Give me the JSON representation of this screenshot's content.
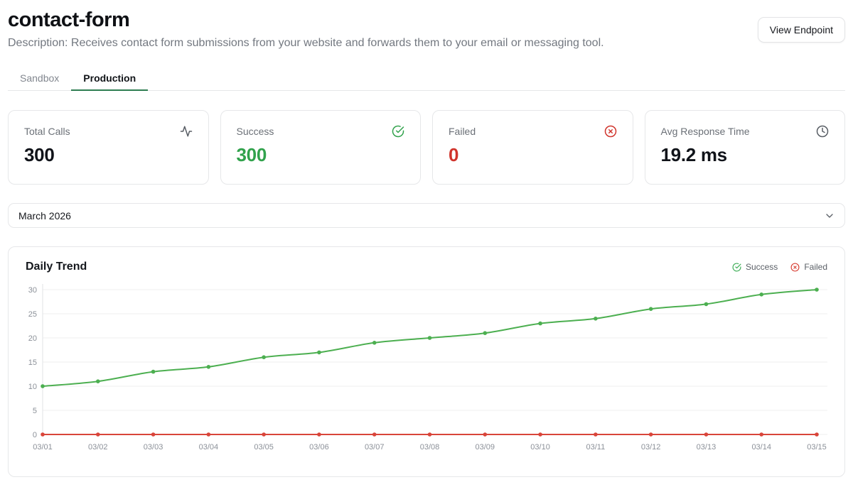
{
  "header": {
    "title": "contact-form",
    "description": "Description: Receives contact form submissions from your website and forwards them to your email or messaging tool.",
    "view_endpoint_label": "View Endpoint"
  },
  "tabs": [
    {
      "label": "Sandbox",
      "active": false
    },
    {
      "label": "Production",
      "active": true
    }
  ],
  "stats": [
    {
      "label": "Total Calls",
      "value": "300",
      "icon": "activity-icon",
      "value_color": "#101319"
    },
    {
      "label": "Success",
      "value": "300",
      "icon": "check-circle-icon",
      "value_color": "#31a24c"
    },
    {
      "label": "Failed",
      "value": "0",
      "icon": "x-circle-icon",
      "value_color": "#d0342c"
    },
    {
      "label": "Avg Response Time",
      "value": "19.2 ms",
      "icon": "clock-icon",
      "value_color": "#101319"
    }
  ],
  "month_select": {
    "value": "March 2026",
    "icon": "chevron-down-icon"
  },
  "chart_card": {
    "title": "Daily Trend",
    "legend": [
      {
        "label": "Success",
        "color": "#3fae58",
        "icon": "check-circle-icon"
      },
      {
        "label": "Failed",
        "color": "#d9453a",
        "icon": "x-circle-icon"
      }
    ]
  },
  "chart_data": {
    "type": "line",
    "title": "Daily Trend",
    "categories": [
      "03/01",
      "03/02",
      "03/03",
      "03/04",
      "03/05",
      "03/06",
      "03/07",
      "03/08",
      "03/09",
      "03/10",
      "03/11",
      "03/12",
      "03/13",
      "03/14",
      "03/15"
    ],
    "series": [
      {
        "name": "Success",
        "color": "#4caf50",
        "values": [
          10,
          11,
          13,
          14,
          16,
          17,
          19,
          20,
          21,
          23,
          24,
          26,
          27,
          29,
          30
        ]
      },
      {
        "name": "Failed",
        "color": "#d9453a",
        "values": [
          0,
          0,
          0,
          0,
          0,
          0,
          0,
          0,
          0,
          0,
          0,
          0,
          0,
          0,
          0
        ]
      }
    ],
    "xlabel": "",
    "ylabel": "",
    "ylim": [
      0,
      30
    ],
    "yticks": [
      0,
      5,
      10,
      15,
      20,
      25,
      30
    ],
    "grid": true,
    "grid_color": "#efefef",
    "axis_line_color": "#e2e3e5",
    "tick_color": "#8b9098",
    "legend_position": "top-right",
    "marker": "dot"
  }
}
